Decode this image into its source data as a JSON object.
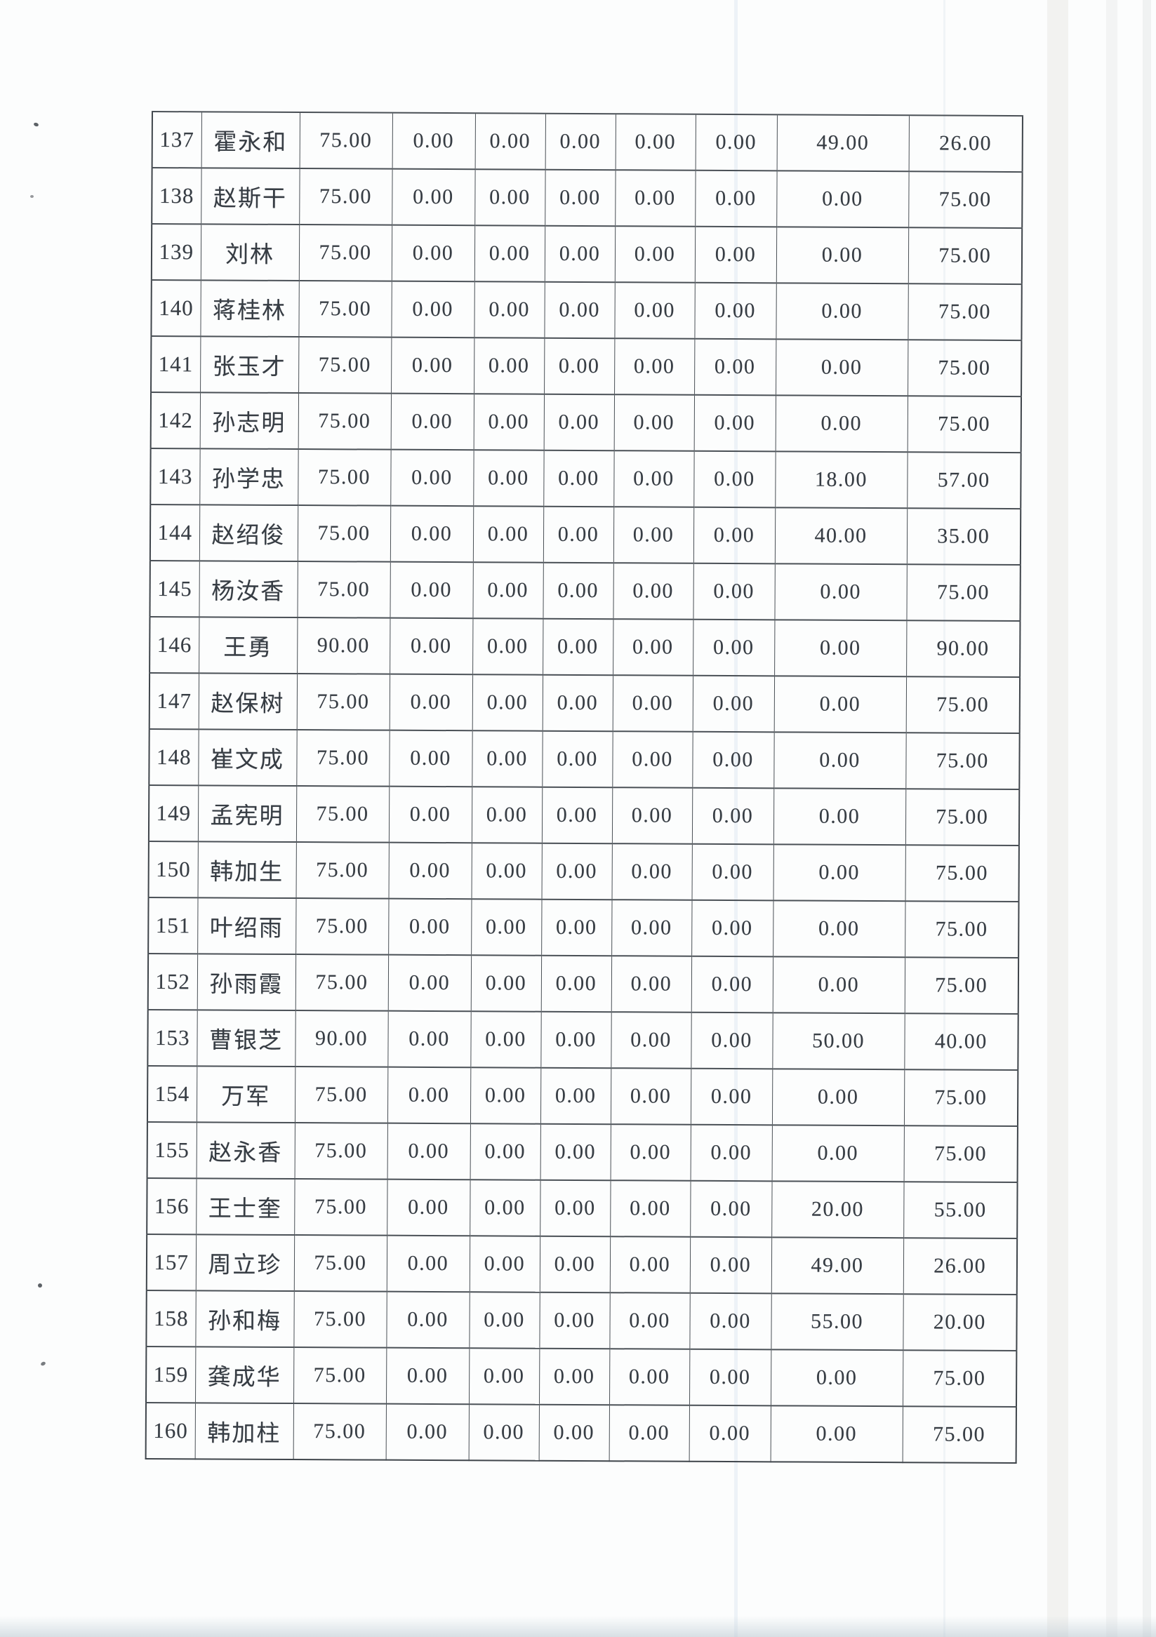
{
  "colors": {
    "ink": "#373d44",
    "grid": "#4a5056",
    "paper": "#fcfdfd"
  },
  "table": {
    "rows": [
      {
        "no": "137",
        "name": "霍永和",
        "values": [
          "75.00",
          "0.00",
          "0.00",
          "0.00",
          "0.00",
          "0.00",
          "49.00",
          "26.00"
        ]
      },
      {
        "no": "138",
        "name": "赵斯干",
        "values": [
          "75.00",
          "0.00",
          "0.00",
          "0.00",
          "0.00",
          "0.00",
          "0.00",
          "75.00"
        ]
      },
      {
        "no": "139",
        "name": "刘林",
        "values": [
          "75.00",
          "0.00",
          "0.00",
          "0.00",
          "0.00",
          "0.00",
          "0.00",
          "75.00"
        ]
      },
      {
        "no": "140",
        "name": "蒋桂林",
        "values": [
          "75.00",
          "0.00",
          "0.00",
          "0.00",
          "0.00",
          "0.00",
          "0.00",
          "75.00"
        ]
      },
      {
        "no": "141",
        "name": "张玉才",
        "values": [
          "75.00",
          "0.00",
          "0.00",
          "0.00",
          "0.00",
          "0.00",
          "0.00",
          "75.00"
        ]
      },
      {
        "no": "142",
        "name": "孙志明",
        "values": [
          "75.00",
          "0.00",
          "0.00",
          "0.00",
          "0.00",
          "0.00",
          "0.00",
          "75.00"
        ]
      },
      {
        "no": "143",
        "name": "孙学忠",
        "values": [
          "75.00",
          "0.00",
          "0.00",
          "0.00",
          "0.00",
          "0.00",
          "18.00",
          "57.00"
        ]
      },
      {
        "no": "144",
        "name": "赵绍俊",
        "values": [
          "75.00",
          "0.00",
          "0.00",
          "0.00",
          "0.00",
          "0.00",
          "40.00",
          "35.00"
        ]
      },
      {
        "no": "145",
        "name": "杨汝香",
        "values": [
          "75.00",
          "0.00",
          "0.00",
          "0.00",
          "0.00",
          "0.00",
          "0.00",
          "75.00"
        ]
      },
      {
        "no": "146",
        "name": "王勇",
        "values": [
          "90.00",
          "0.00",
          "0.00",
          "0.00",
          "0.00",
          "0.00",
          "0.00",
          "90.00"
        ]
      },
      {
        "no": "147",
        "name": "赵保树",
        "values": [
          "75.00",
          "0.00",
          "0.00",
          "0.00",
          "0.00",
          "0.00",
          "0.00",
          "75.00"
        ]
      },
      {
        "no": "148",
        "name": "崔文成",
        "values": [
          "75.00",
          "0.00",
          "0.00",
          "0.00",
          "0.00",
          "0.00",
          "0.00",
          "75.00"
        ]
      },
      {
        "no": "149",
        "name": "孟宪明",
        "values": [
          "75.00",
          "0.00",
          "0.00",
          "0.00",
          "0.00",
          "0.00",
          "0.00",
          "75.00"
        ]
      },
      {
        "no": "150",
        "name": "韩加生",
        "values": [
          "75.00",
          "0.00",
          "0.00",
          "0.00",
          "0.00",
          "0.00",
          "0.00",
          "75.00"
        ]
      },
      {
        "no": "151",
        "name": "叶绍雨",
        "values": [
          "75.00",
          "0.00",
          "0.00",
          "0.00",
          "0.00",
          "0.00",
          "0.00",
          "75.00"
        ]
      },
      {
        "no": "152",
        "name": "孙雨霞",
        "values": [
          "75.00",
          "0.00",
          "0.00",
          "0.00",
          "0.00",
          "0.00",
          "0.00",
          "75.00"
        ]
      },
      {
        "no": "153",
        "name": "曹银芝",
        "values": [
          "90.00",
          "0.00",
          "0.00",
          "0.00",
          "0.00",
          "0.00",
          "50.00",
          "40.00"
        ]
      },
      {
        "no": "154",
        "name": "万军",
        "values": [
          "75.00",
          "0.00",
          "0.00",
          "0.00",
          "0.00",
          "0.00",
          "0.00",
          "75.00"
        ]
      },
      {
        "no": "155",
        "name": "赵永香",
        "values": [
          "75.00",
          "0.00",
          "0.00",
          "0.00",
          "0.00",
          "0.00",
          "0.00",
          "75.00"
        ]
      },
      {
        "no": "156",
        "name": "王士奎",
        "values": [
          "75.00",
          "0.00",
          "0.00",
          "0.00",
          "0.00",
          "0.00",
          "20.00",
          "55.00"
        ]
      },
      {
        "no": "157",
        "name": "周立珍",
        "values": [
          "75.00",
          "0.00",
          "0.00",
          "0.00",
          "0.00",
          "0.00",
          "49.00",
          "26.00"
        ]
      },
      {
        "no": "158",
        "name": "孙和梅",
        "values": [
          "75.00",
          "0.00",
          "0.00",
          "0.00",
          "0.00",
          "0.00",
          "55.00",
          "20.00"
        ]
      },
      {
        "no": "159",
        "name": "龚成华",
        "values": [
          "75.00",
          "0.00",
          "0.00",
          "0.00",
          "0.00",
          "0.00",
          "0.00",
          "75.00"
        ]
      },
      {
        "no": "160",
        "name": "韩加柱",
        "values": [
          "75.00",
          "0.00",
          "0.00",
          "0.00",
          "0.00",
          "0.00",
          "0.00",
          "75.00"
        ]
      }
    ]
  }
}
